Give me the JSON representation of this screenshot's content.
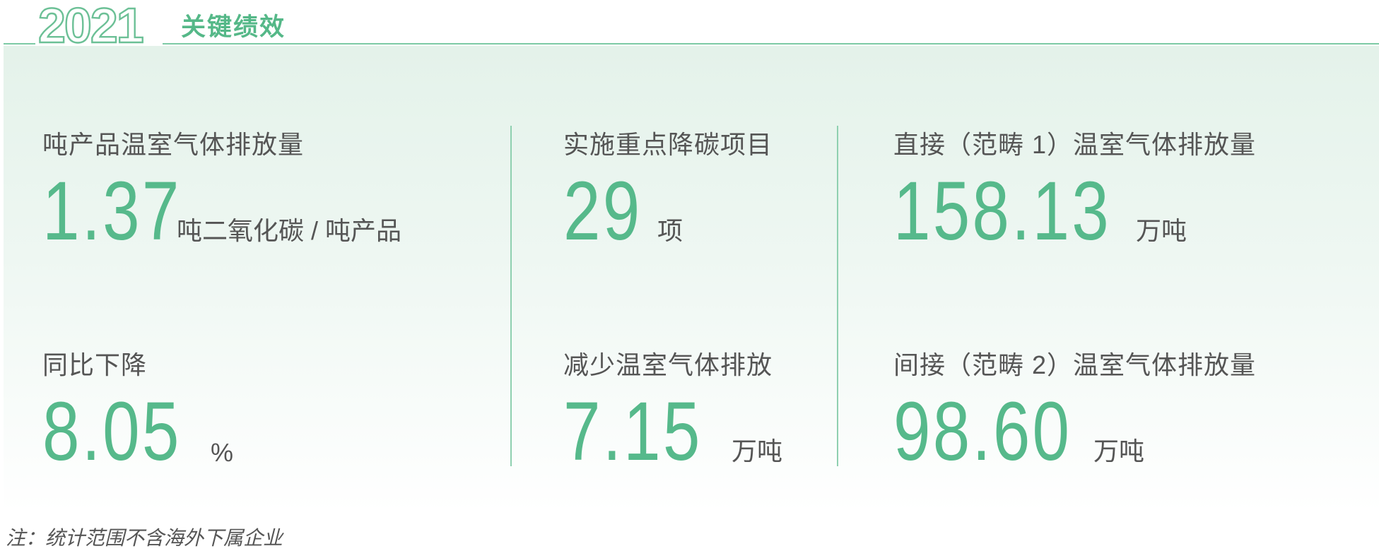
{
  "header": {
    "year": "2021",
    "title": "关键绩效"
  },
  "colors": {
    "accent": "#56b98b",
    "text": "#555555",
    "panel": "#e4f2ea"
  },
  "metrics": [
    {
      "label": "吨产品温室气体排放量",
      "value": "1.37",
      "unit": "吨二氧化碳 / 吨产品"
    },
    {
      "label": "实施重点降碳项目",
      "value": "29",
      "unit": "项"
    },
    {
      "label": "直接（范畴 1）温室气体排放量",
      "value": "158.13",
      "unit": "万吨"
    },
    {
      "label": "同比下降",
      "value": "8.05",
      "unit": "%"
    },
    {
      "label": "减少温室气体排放",
      "value": "7.15",
      "unit": "万吨"
    },
    {
      "label": "间接（范畴 2）温室气体排放量",
      "value": "98.60",
      "unit": "万吨"
    }
  ],
  "footnote": "注：统计范围不含海外下属企业"
}
